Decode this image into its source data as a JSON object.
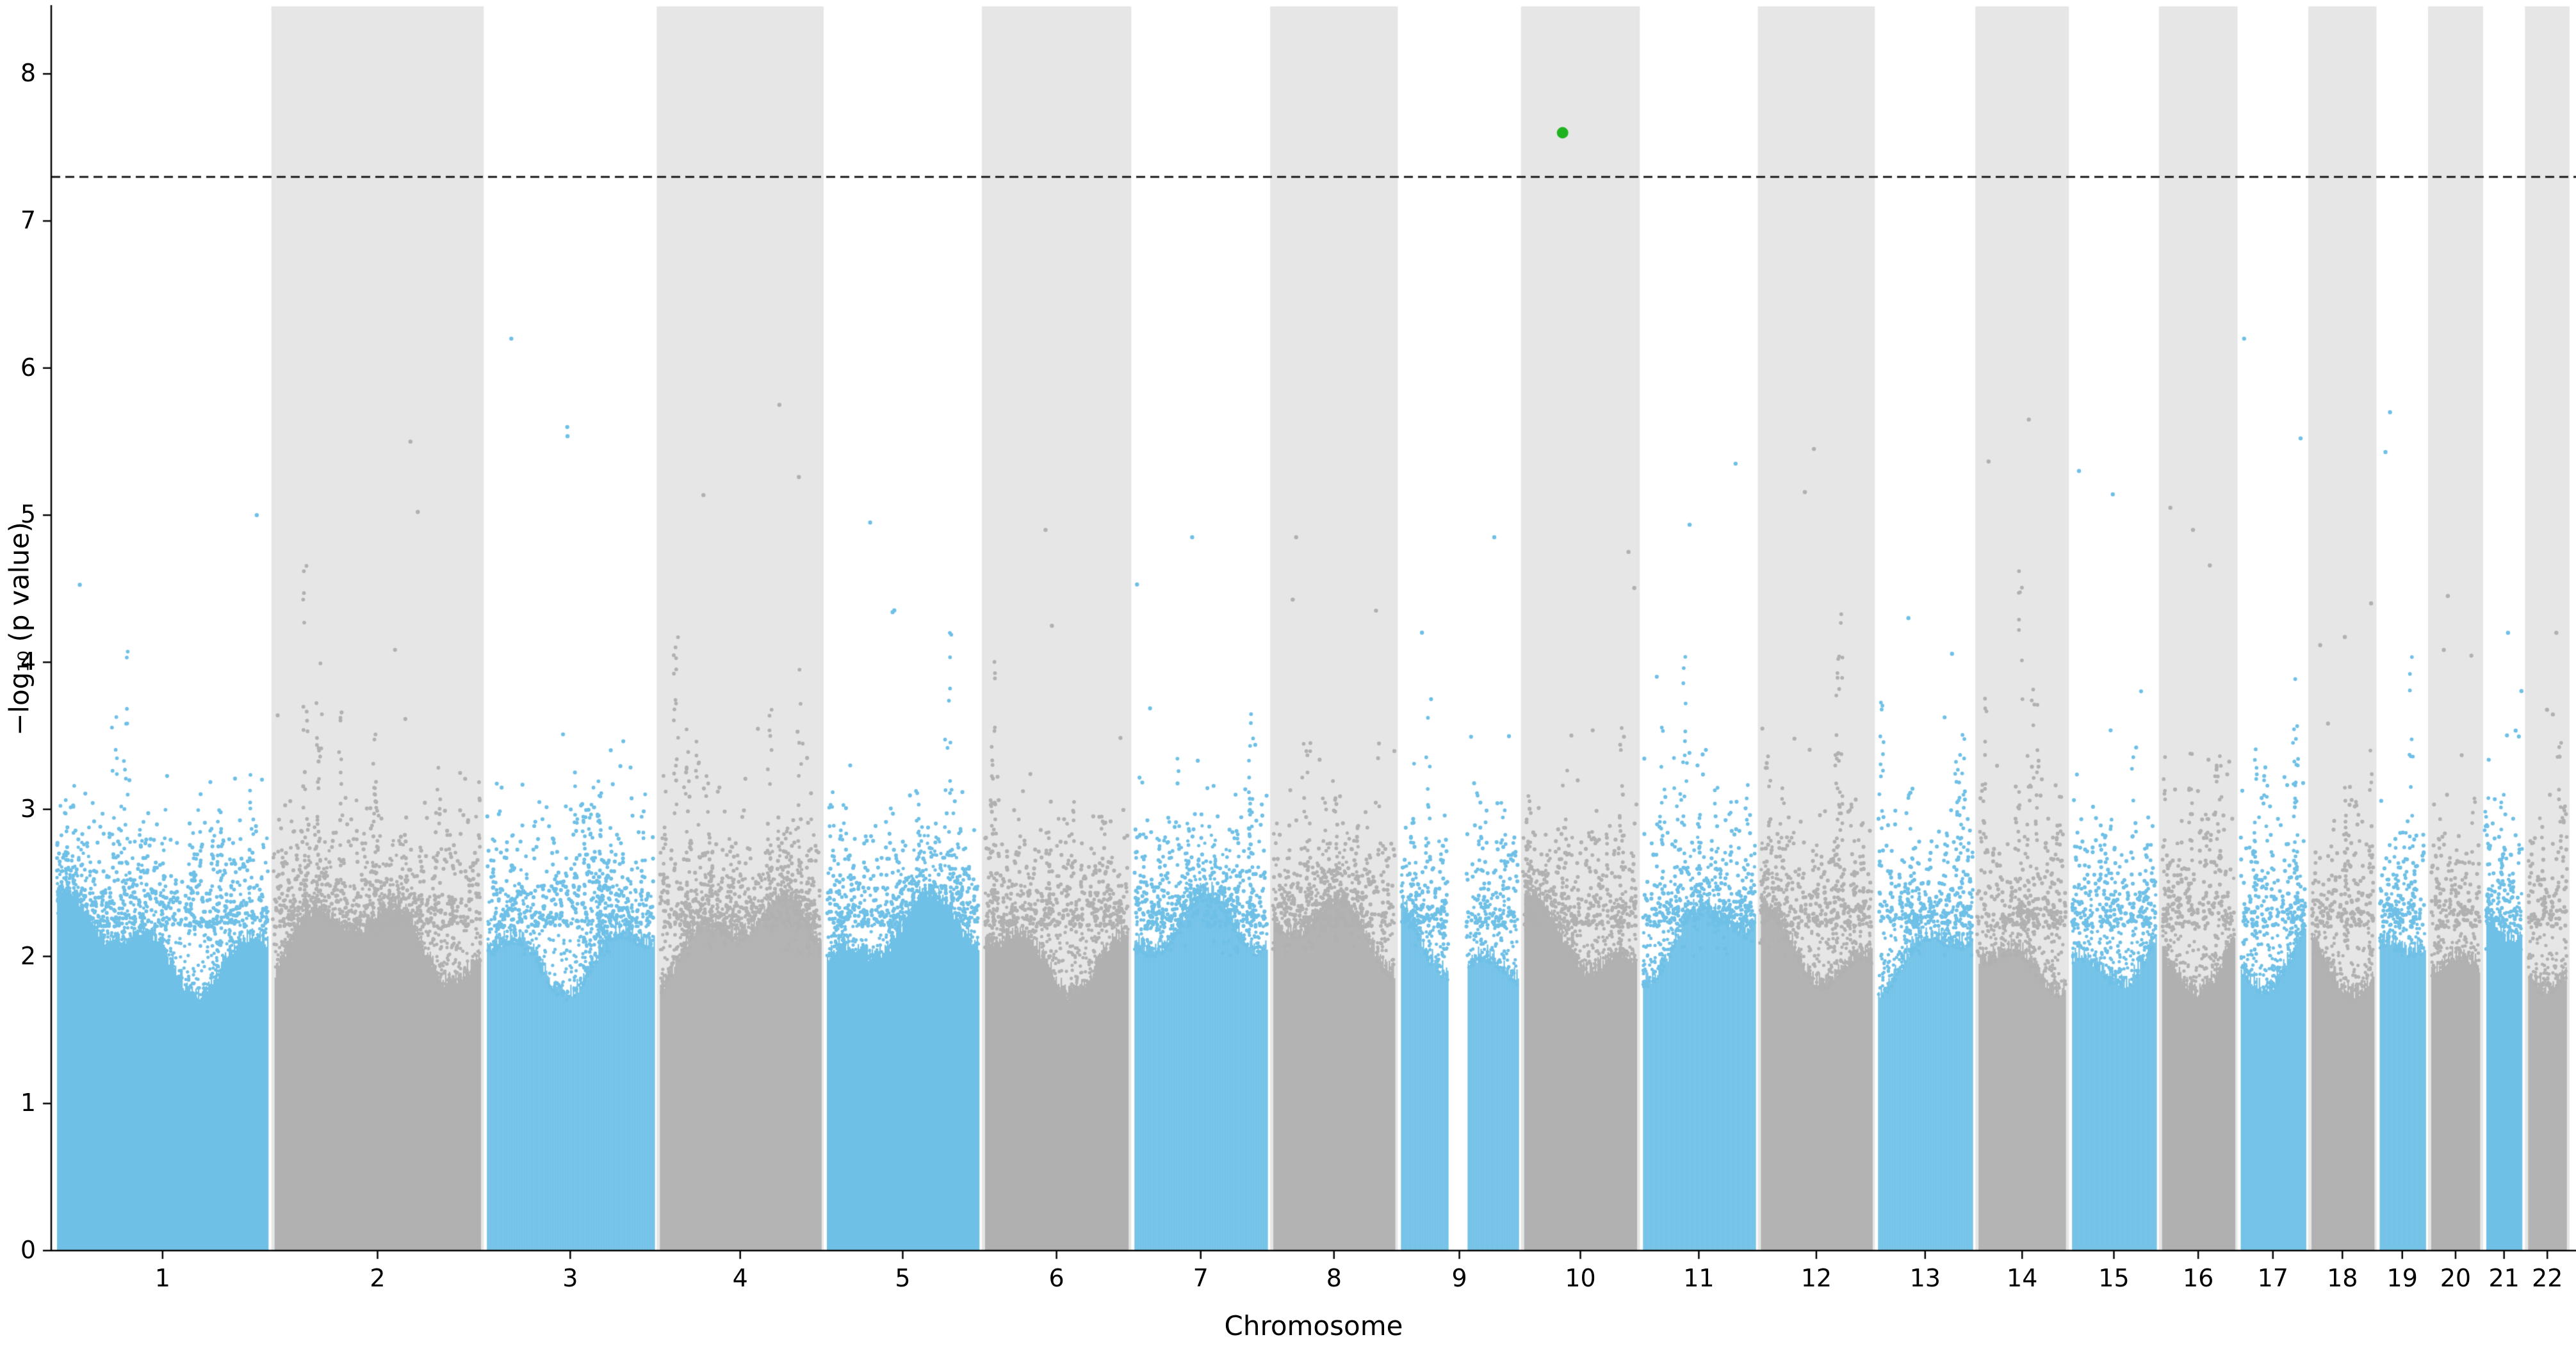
{
  "chart_data": {
    "type": "scatter",
    "subtype": "manhattan-plot",
    "title": "",
    "xlabel": "Chromosome",
    "ylabel": "−log₁₀ (p value)",
    "ylim": [
      0,
      8.45
    ],
    "yticks": [
      0,
      1,
      2,
      3,
      4,
      5,
      6,
      7,
      8
    ],
    "grid": false,
    "legend": null,
    "threshold": {
      "value": 7.3,
      "style": "dashed",
      "color": "#1a1a1a"
    },
    "significant_point": {
      "chromosome": "10",
      "value": 7.6,
      "color": "#1fb41f",
      "position_frac": 0.35
    },
    "colors": {
      "odd_chrom": "#6fc0e7",
      "even_chrom": "#b1b1b1",
      "band": "#e6e6e6",
      "background": "#ffffff",
      "axis": "#000000"
    },
    "chromosomes": [
      {
        "label": "1",
        "size": 249,
        "max": 5.0
      },
      {
        "label": "2",
        "size": 243,
        "max": 5.5
      },
      {
        "label": "3",
        "size": 198,
        "max": 6.2
      },
      {
        "label": "4",
        "size": 191,
        "max": 5.75
      },
      {
        "label": "5",
        "size": 181,
        "max": 4.95
      },
      {
        "label": "6",
        "size": 171,
        "max": 4.9
      },
      {
        "label": "7",
        "size": 159,
        "max": 4.85
      },
      {
        "label": "8",
        "size": 146,
        "max": 4.85
      },
      {
        "label": "9",
        "size": 141,
        "max": 4.85,
        "gap": [
          0.4,
          0.56
        ]
      },
      {
        "label": "10",
        "size": 136,
        "max": 4.75
      },
      {
        "label": "11",
        "size": 135,
        "max": 5.35
      },
      {
        "label": "12",
        "size": 134,
        "max": 5.45
      },
      {
        "label": "13",
        "size": 115,
        "max": 4.3
      },
      {
        "label": "14",
        "size": 107,
        "max": 5.65
      },
      {
        "label": "15",
        "size": 103,
        "max": 5.3
      },
      {
        "label": "16",
        "size": 90,
        "max": 5.05
      },
      {
        "label": "17",
        "size": 81,
        "max": 6.2
      },
      {
        "label": "18",
        "size": 78,
        "max": 4.4
      },
      {
        "label": "19",
        "size": 59,
        "max": 5.7
      },
      {
        "label": "20",
        "size": 63,
        "max": 4.45
      },
      {
        "label": "21",
        "size": 48,
        "max": 4.2
      },
      {
        "label": "22",
        "size": 51,
        "max": 4.2
      }
    ]
  }
}
